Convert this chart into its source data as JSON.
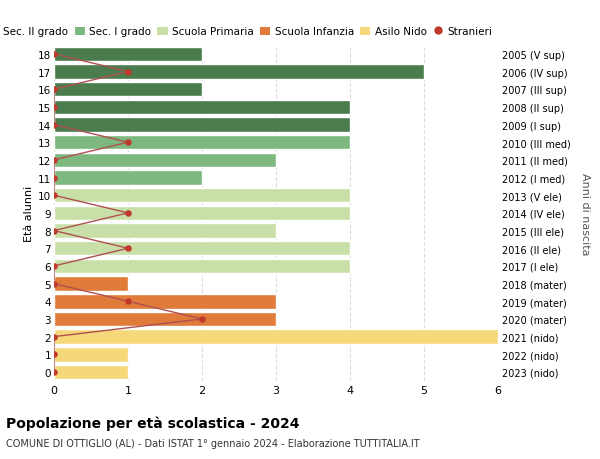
{
  "ages": [
    18,
    17,
    16,
    15,
    14,
    13,
    12,
    11,
    10,
    9,
    8,
    7,
    6,
    5,
    4,
    3,
    2,
    1,
    0
  ],
  "years": [
    "2005 (V sup)",
    "2006 (IV sup)",
    "2007 (III sup)",
    "2008 (II sup)",
    "2009 (I sup)",
    "2010 (III med)",
    "2011 (II med)",
    "2012 (I med)",
    "2013 (V ele)",
    "2014 (IV ele)",
    "2015 (III ele)",
    "2016 (II ele)",
    "2017 (I ele)",
    "2018 (mater)",
    "2019 (mater)",
    "2020 (mater)",
    "2021 (nido)",
    "2022 (nido)",
    "2023 (nido)"
  ],
  "bar_values": [
    2,
    5,
    2,
    4,
    4,
    4,
    3,
    2,
    4,
    4,
    3,
    4,
    4,
    1,
    3,
    3,
    6,
    1,
    1
  ],
  "bar_colors": [
    "#4a7c4e",
    "#4a7c4e",
    "#4a7c4e",
    "#4a7c4e",
    "#4a7c4e",
    "#7db87e",
    "#7db87e",
    "#7db87e",
    "#c8e0a8",
    "#c8e0a8",
    "#c8e0a8",
    "#c8e0a8",
    "#c8e0a8",
    "#e07b3a",
    "#e07b3a",
    "#e07b3a",
    "#f5d87a",
    "#f5d87a",
    "#f5d87a"
  ],
  "stranieri_x": [
    0,
    1,
    0,
    0,
    0,
    1,
    0,
    0,
    0,
    1,
    0,
    1,
    0,
    0,
    1,
    2,
    0,
    0,
    0
  ],
  "legend_labels": [
    "Sec. II grado",
    "Sec. I grado",
    "Scuola Primaria",
    "Scuola Infanzia",
    "Asilo Nido",
    "Stranieri"
  ],
  "legend_colors": [
    "#4a7c4e",
    "#7db87e",
    "#c8e0a8",
    "#e07b3a",
    "#f5d87a",
    "#c0392b"
  ],
  "title": "Popolazione per età scolastica - 2024",
  "subtitle": "COMUNE DI OTTIGLIO (AL) - Dati ISTAT 1° gennaio 2024 - Elaborazione TUTTITALIA.IT",
  "ylabel_left": "Età alunni",
  "ylabel_right": "Anni di nascita",
  "xlim": [
    0,
    6
  ],
  "background_color": "#ffffff",
  "plot_bg_color": "#ffffff",
  "grid_color": "#dddddd",
  "bar_edge_color": "#ffffff",
  "stranieri_color": "#c0392b",
  "stranieri_line_color": "#b05050"
}
